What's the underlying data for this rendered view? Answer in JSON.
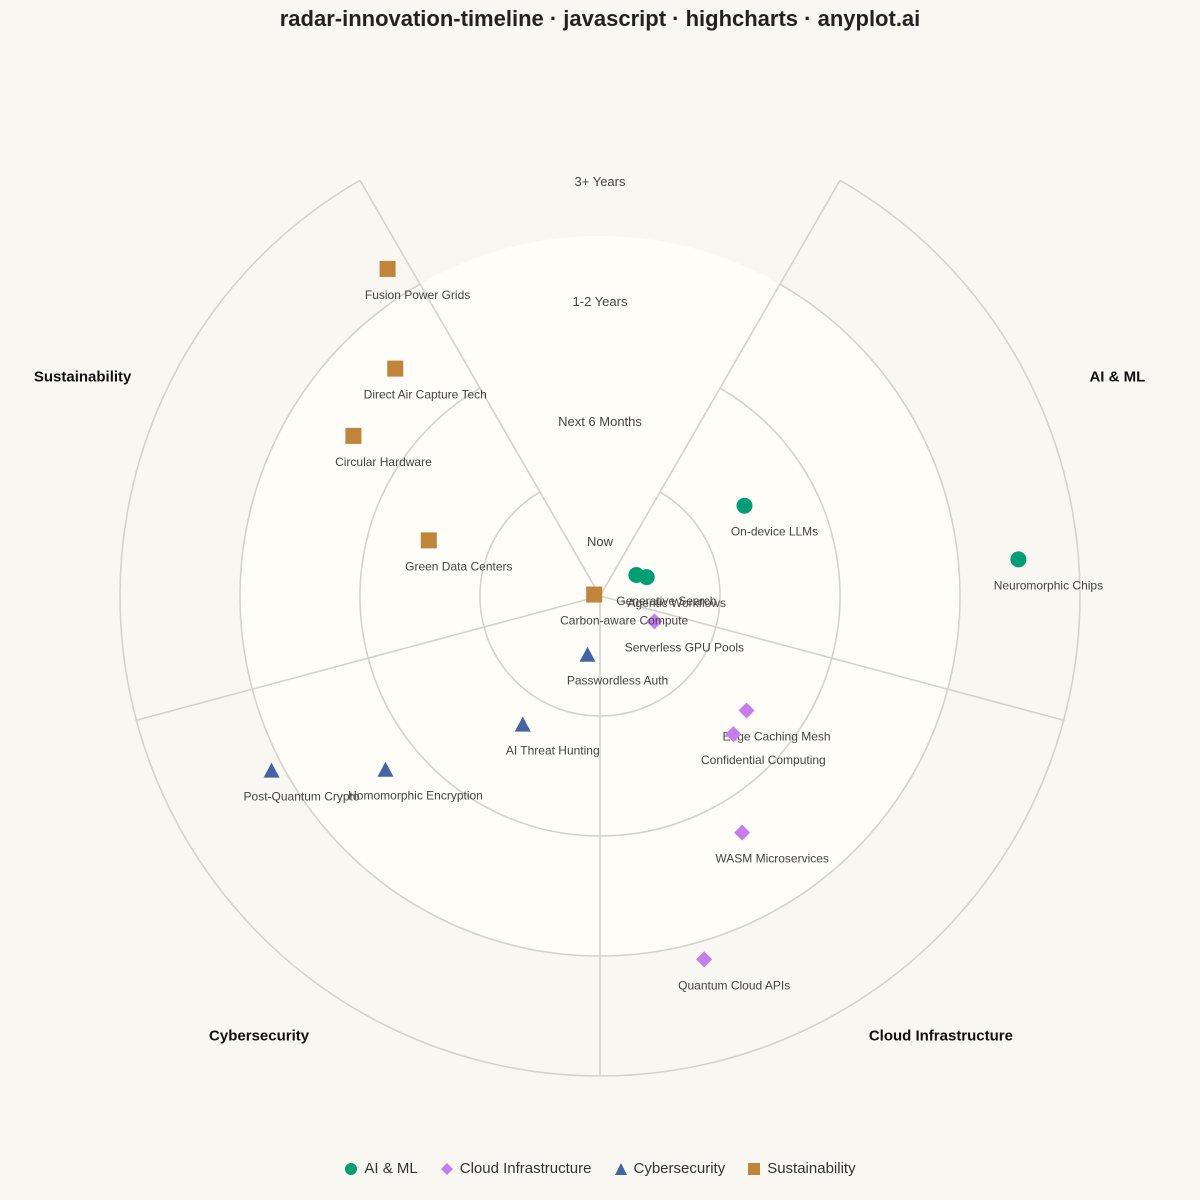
{
  "chart_data": {
    "type": "scatter",
    "title": "radar-innovation-timeline · javascript · highcharts · anyplot.ai",
    "rings": [
      "Now",
      "Next 6 Months",
      "1-2 Years",
      "3+ Years"
    ],
    "sectors": [
      {
        "name": "AI & ML",
        "color": "#009e73",
        "marker": "circle"
      },
      {
        "name": "Cloud Infrastructure",
        "color": "#c77cf0",
        "marker": "diamond"
      },
      {
        "name": "Cybersecurity",
        "color": "#4464a8",
        "marker": "triangle"
      },
      {
        "name": "Sustainability",
        "color": "#c0843a",
        "marker": "square"
      }
    ],
    "series": [
      {
        "name": "AI & ML",
        "points": [
          {
            "label": "Generative Search",
            "ring": 0.35,
            "angle": 60
          },
          {
            "label": "Agentic Workflows",
            "ring": 0.42,
            "angle": 68
          },
          {
            "label": "On-device LLMs",
            "ring": 1.42,
            "angle": 58
          },
          {
            "label": "Neuromorphic Chips",
            "ring": 3.5,
            "angle": 85
          }
        ]
      },
      {
        "name": "Cloud Infrastructure",
        "points": [
          {
            "label": "Serverless GPU Pools",
            "ring": 0.5,
            "angle": 115
          },
          {
            "label": "Edge Caching Mesh",
            "ring": 1.55,
            "angle": 128
          },
          {
            "label": "Confidential Computing",
            "ring": 1.6,
            "angle": 136
          },
          {
            "label": "WASM Microservices",
            "ring": 2.3,
            "angle": 149
          },
          {
            "label": "Quantum Cloud APIs",
            "ring": 3.15,
            "angle": 164
          }
        ]
      },
      {
        "name": "Cybersecurity",
        "points": [
          {
            "label": "Passwordless Auth",
            "ring": 0.5,
            "angle": 192
          },
          {
            "label": "AI Threat Hunting",
            "ring": 1.25,
            "angle": 211
          },
          {
            "label": "Homomorphic Encryption",
            "ring": 2.3,
            "angle": 231
          },
          {
            "label": "Post-Quantum Crypto",
            "ring": 3.1,
            "angle": 242
          }
        ]
      },
      {
        "name": "Sustainability",
        "points": [
          {
            "label": "Carbon-aware Compute",
            "ring": 0.05,
            "angle": 284
          },
          {
            "label": "Green Data Centers",
            "ring": 1.5,
            "angle": 288
          },
          {
            "label": "Circular Hardware",
            "ring": 2.45,
            "angle": 303
          },
          {
            "label": "Direct Air Capture Tech",
            "ring": 2.55,
            "angle": 318
          },
          {
            "label": "Fusion Power Grids",
            "ring": 3.25,
            "angle": 327
          }
        ]
      }
    ],
    "legend_position": "bottom",
    "grid": true
  }
}
